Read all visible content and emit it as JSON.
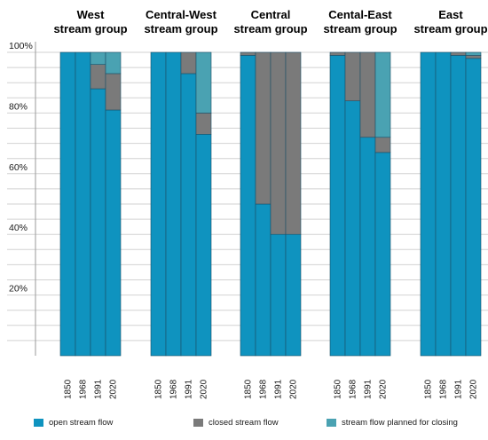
{
  "chart_data": {
    "type": "bar",
    "stacked": true,
    "percent_stacked": true,
    "ylim": [
      0,
      100
    ],
    "yticks": [
      20,
      40,
      60,
      80,
      100
    ],
    "ytick_labels": [
      "20%",
      "40%",
      "60%",
      "80%",
      "100%"
    ],
    "grid": "horizontal gridlines at every 5%",
    "legend_position": "bottom",
    "colors": {
      "open": "#0f93bf",
      "closed": "#7a7a7a",
      "planned": "#4aa2b2"
    },
    "groups": [
      {
        "title": [
          "West",
          "stream group"
        ],
        "categories": [
          "1850",
          "1968",
          "1991",
          "2020"
        ],
        "open": [
          100,
          100,
          88,
          81
        ],
        "closed": [
          0,
          0,
          8,
          12
        ],
        "planned": [
          0,
          0,
          4,
          7
        ]
      },
      {
        "title": [
          "Central-West",
          "stream group"
        ],
        "categories": [
          "1850",
          "1968",
          "1991",
          "2020"
        ],
        "open": [
          100,
          100,
          93,
          73
        ],
        "closed": [
          0,
          0,
          7,
          7
        ],
        "planned": [
          0,
          0,
          0,
          20
        ]
      },
      {
        "title": [
          "Central",
          "stream group"
        ],
        "categories": [
          "1850",
          "1968",
          "1991",
          "2020"
        ],
        "open": [
          99,
          50,
          40,
          40
        ],
        "closed": [
          1,
          50,
          60,
          60
        ],
        "planned": [
          0,
          0,
          0,
          0
        ]
      },
      {
        "title": [
          "Cental-East",
          "stream group"
        ],
        "categories": [
          "1850",
          "1968",
          "1991",
          "2020"
        ],
        "open": [
          99,
          84,
          72,
          67
        ],
        "closed": [
          1,
          16,
          28,
          5
        ],
        "planned": [
          0,
          0,
          0,
          28
        ]
      },
      {
        "title": [
          "East",
          "stream group"
        ],
        "categories": [
          "1850",
          "1968",
          "1991",
          "2020"
        ],
        "open": [
          100,
          100,
          99,
          98
        ],
        "closed": [
          0,
          0,
          1,
          1
        ],
        "planned": [
          0,
          0,
          0,
          1
        ]
      }
    ],
    "series": [
      {
        "key": "open",
        "name": "open stream flow"
      },
      {
        "key": "closed",
        "name": "closed stream flow"
      },
      {
        "key": "planned",
        "name": "stream flow planned for closing"
      }
    ]
  }
}
